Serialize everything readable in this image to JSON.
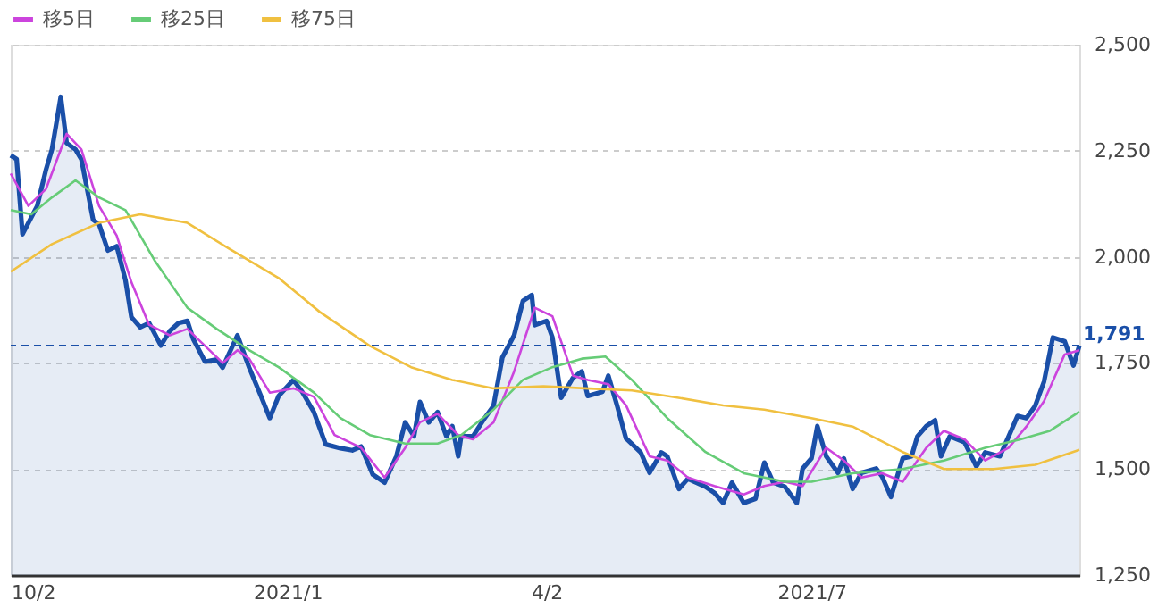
{
  "chart_data": {
    "type": "line",
    "xlim": [
      "2020-10-02",
      "2021-09-30"
    ],
    "xticks": [
      {
        "value": "2020-10-02",
        "label": "10/2"
      },
      {
        "value": "2021-01-04",
        "label": "2021/1"
      },
      {
        "value": "2021-04-02",
        "label": "4/2"
      },
      {
        "value": "2021-07-01",
        "label": "2021/7"
      }
    ],
    "ylim": [
      1250,
      2500
    ],
    "yticks": [
      {
        "value": 1250,
        "label": "1,250"
      },
      {
        "value": 1500,
        "label": "1,500"
      },
      {
        "value": 1750,
        "label": "1,750"
      },
      {
        "value": 2000,
        "label": "2,000"
      },
      {
        "value": 2250,
        "label": "2,250"
      },
      {
        "value": 2500,
        "label": "2,500"
      }
    ],
    "grid": "y",
    "legend": "top left",
    "ref_lines": [
      {
        "axis": "y",
        "value": 1791,
        "label": "1,791",
        "color": "#1a4fa8",
        "line_style": "dashed"
      }
    ],
    "series": [
      {
        "type": "area",
        "color": "#1a4fa8",
        "x": [
          "2020-10-02",
          "2020-10-04",
          "2020-10-06",
          "2020-10-11",
          "2020-10-14",
          "2020-10-16",
          "2020-10-19",
          "2020-10-21",
          "2020-10-24",
          "2020-10-26",
          "2020-10-28",
          "2020-10-30",
          "2020-11-01",
          "2020-11-04",
          "2020-11-07",
          "2020-11-10",
          "2020-11-12",
          "2020-11-15",
          "2020-11-18",
          "2020-11-22",
          "2020-11-25",
          "2020-11-28",
          "2020-12-01",
          "2020-12-03",
          "2020-12-07",
          "2020-12-11",
          "2020-12-13",
          "2020-12-18",
          "2020-12-22",
          "2020-12-26",
          "2020-12-29",
          "2021-01-01",
          "2021-01-06",
          "2021-01-09",
          "2021-01-13",
          "2021-01-17",
          "2021-01-22",
          "2021-01-26",
          "2021-01-29",
          "2021-02-02",
          "2021-02-06",
          "2021-02-10",
          "2021-02-13",
          "2021-02-16",
          "2021-02-18",
          "2021-02-21",
          "2021-02-24",
          "2021-02-27",
          "2021-03-01",
          "2021-03-03",
          "2021-03-04",
          "2021-03-08",
          "2021-03-12",
          "2021-03-15",
          "2021-03-18",
          "2021-03-22",
          "2021-03-25",
          "2021-03-28",
          "2021-03-29",
          "2021-04-02",
          "2021-04-04",
          "2021-04-07",
          "2021-04-11",
          "2021-04-14",
          "2021-04-16",
          "2021-04-21",
          "2021-04-23",
          "2021-04-26",
          "2021-04-29",
          "2021-05-04",
          "2021-05-07",
          "2021-05-11",
          "2021-05-13",
          "2021-05-17",
          "2021-05-20",
          "2021-05-26",
          "2021-05-29",
          "2021-06-01",
          "2021-06-04",
          "2021-06-08",
          "2021-06-12",
          "2021-06-15",
          "2021-06-18",
          "2021-06-22",
          "2021-06-26",
          "2021-06-28",
          "2021-07-01",
          "2021-07-03",
          "2021-07-06",
          "2021-07-10",
          "2021-07-12",
          "2021-07-15",
          "2021-07-18",
          "2021-07-23",
          "2021-07-25",
          "2021-07-28",
          "2021-08-01",
          "2021-08-04",
          "2021-08-06",
          "2021-08-09",
          "2021-08-12",
          "2021-08-14",
          "2021-08-17",
          "2021-08-22",
          "2021-08-26",
          "2021-08-29",
          "2021-09-03",
          "2021-09-06",
          "2021-09-09",
          "2021-09-12",
          "2021-09-15",
          "2021-09-18",
          "2021-09-21",
          "2021-09-25",
          "2021-09-28",
          "2021-09-30"
        ],
        "values": [
          2239,
          2230,
          2053,
          2120,
          2206,
          2253,
          2377,
          2268,
          2253,
          2230,
          2158,
          2087,
          2077,
          2015,
          2025,
          1944,
          1858,
          1834,
          1844,
          1791,
          1825,
          1844,
          1849,
          1806,
          1753,
          1758,
          1739,
          1815,
          1739,
          1672,
          1620,
          1672,
          1710,
          1682,
          1634,
          1558,
          1549,
          1544,
          1553,
          1487,
          1468,
          1530,
          1610,
          1577,
          1658,
          1610,
          1634,
          1577,
          1601,
          1530,
          1577,
          1577,
          1620,
          1649,
          1763,
          1815,
          1896,
          1910,
          1839,
          1849,
          1810,
          1668,
          1715,
          1730,
          1672,
          1682,
          1720,
          1649,
          1572,
          1539,
          1491,
          1539,
          1530,
          1453,
          1477,
          1458,
          1444,
          1420,
          1468,
          1420,
          1430,
          1515,
          1468,
          1458,
          1420,
          1501,
          1525,
          1601,
          1530,
          1491,
          1525,
          1453,
          1491,
          1501,
          1482,
          1434,
          1525,
          1530,
          1577,
          1601,
          1615,
          1530,
          1577,
          1563,
          1506,
          1539,
          1530,
          1577,
          1625,
          1620,
          1649,
          1706,
          1810,
          1801,
          1744,
          1791
        ]
      },
      {
        "type": "line",
        "name": "移5日",
        "color": "#cc44dd",
        "x": [
          "2020-10-02",
          "2020-10-08",
          "2020-10-14",
          "2020-10-21",
          "2020-10-26",
          "2020-11-01",
          "2020-11-07",
          "2020-11-12",
          "2020-11-18",
          "2020-11-25",
          "2020-12-01",
          "2020-12-07",
          "2020-12-13",
          "2020-12-18",
          "2020-12-22",
          "2020-12-29",
          "2021-01-06",
          "2021-01-13",
          "2021-01-20",
          "2021-01-29",
          "2021-02-06",
          "2021-02-13",
          "2021-02-18",
          "2021-02-24",
          "2021-03-03",
          "2021-03-08",
          "2021-03-15",
          "2021-03-22",
          "2021-03-29",
          "2021-04-04",
          "2021-04-11",
          "2021-04-16",
          "2021-04-23",
          "2021-04-29",
          "2021-05-07",
          "2021-05-13",
          "2021-05-20",
          "2021-05-29",
          "2021-06-08",
          "2021-06-15",
          "2021-06-22",
          "2021-06-28",
          "2021-07-06",
          "2021-07-12",
          "2021-07-18",
          "2021-07-25",
          "2021-08-01",
          "2021-08-09",
          "2021-08-15",
          "2021-08-22",
          "2021-08-29",
          "2021-09-06",
          "2021-09-12",
          "2021-09-18",
          "2021-09-25",
          "2021-09-30"
        ],
        "values": [
          2196,
          2120,
          2160,
          2290,
          2253,
          2120,
          2050,
          1940,
          1840,
          1815,
          1830,
          1790,
          1750,
          1780,
          1760,
          1680,
          1690,
          1670,
          1580,
          1550,
          1480,
          1550,
          1610,
          1630,
          1580,
          1570,
          1610,
          1730,
          1880,
          1860,
          1720,
          1710,
          1700,
          1650,
          1530,
          1520,
          1480,
          1460,
          1440,
          1460,
          1470,
          1460,
          1550,
          1520,
          1480,
          1490,
          1470,
          1550,
          1590,
          1570,
          1520,
          1550,
          1600,
          1660,
          1770,
          1780
        ]
      },
      {
        "type": "line",
        "name": "移25日",
        "color": "#66cc77",
        "x": [
          "2020-10-02",
          "2020-10-09",
          "2020-10-16",
          "2020-10-24",
          "2020-11-01",
          "2020-11-10",
          "2020-11-20",
          "2020-12-01",
          "2020-12-11",
          "2020-12-22",
          "2021-01-01",
          "2021-01-13",
          "2021-01-22",
          "2021-02-01",
          "2021-02-13",
          "2021-02-24",
          "2021-03-04",
          "2021-03-15",
          "2021-03-25",
          "2021-04-04",
          "2021-04-14",
          "2021-04-22",
          "2021-05-01",
          "2021-05-13",
          "2021-05-26",
          "2021-06-08",
          "2021-06-22",
          "2021-07-01",
          "2021-07-15",
          "2021-08-01",
          "2021-08-15",
          "2021-08-29",
          "2021-09-10",
          "2021-09-20",
          "2021-09-30"
        ],
        "values": [
          2110,
          2100,
          2140,
          2180,
          2140,
          2110,
          1990,
          1880,
          1830,
          1780,
          1740,
          1680,
          1620,
          1580,
          1560,
          1560,
          1580,
          1640,
          1710,
          1740,
          1760,
          1765,
          1710,
          1620,
          1540,
          1490,
          1470,
          1470,
          1490,
          1500,
          1520,
          1550,
          1570,
          1590,
          1635
        ]
      },
      {
        "type": "line",
        "name": "移75日",
        "color": "#f0c040",
        "x": [
          "2020-10-02",
          "2020-10-16",
          "2020-11-01",
          "2020-11-15",
          "2020-12-01",
          "2020-12-15",
          "2021-01-01",
          "2021-01-15",
          "2021-02-01",
          "2021-02-15",
          "2021-03-01",
          "2021-03-15",
          "2021-04-01",
          "2021-04-15",
          "2021-05-01",
          "2021-05-15",
          "2021-06-01",
          "2021-06-15",
          "2021-07-01",
          "2021-07-15",
          "2021-08-01",
          "2021-08-15",
          "2021-09-01",
          "2021-09-15",
          "2021-09-30"
        ],
        "values": [
          1965,
          2030,
          2080,
          2100,
          2080,
          2020,
          1950,
          1870,
          1790,
          1740,
          1710,
          1690,
          1695,
          1690,
          1685,
          1670,
          1650,
          1640,
          1620,
          1600,
          1540,
          1500,
          1500,
          1510,
          1545
        ]
      }
    ]
  }
}
